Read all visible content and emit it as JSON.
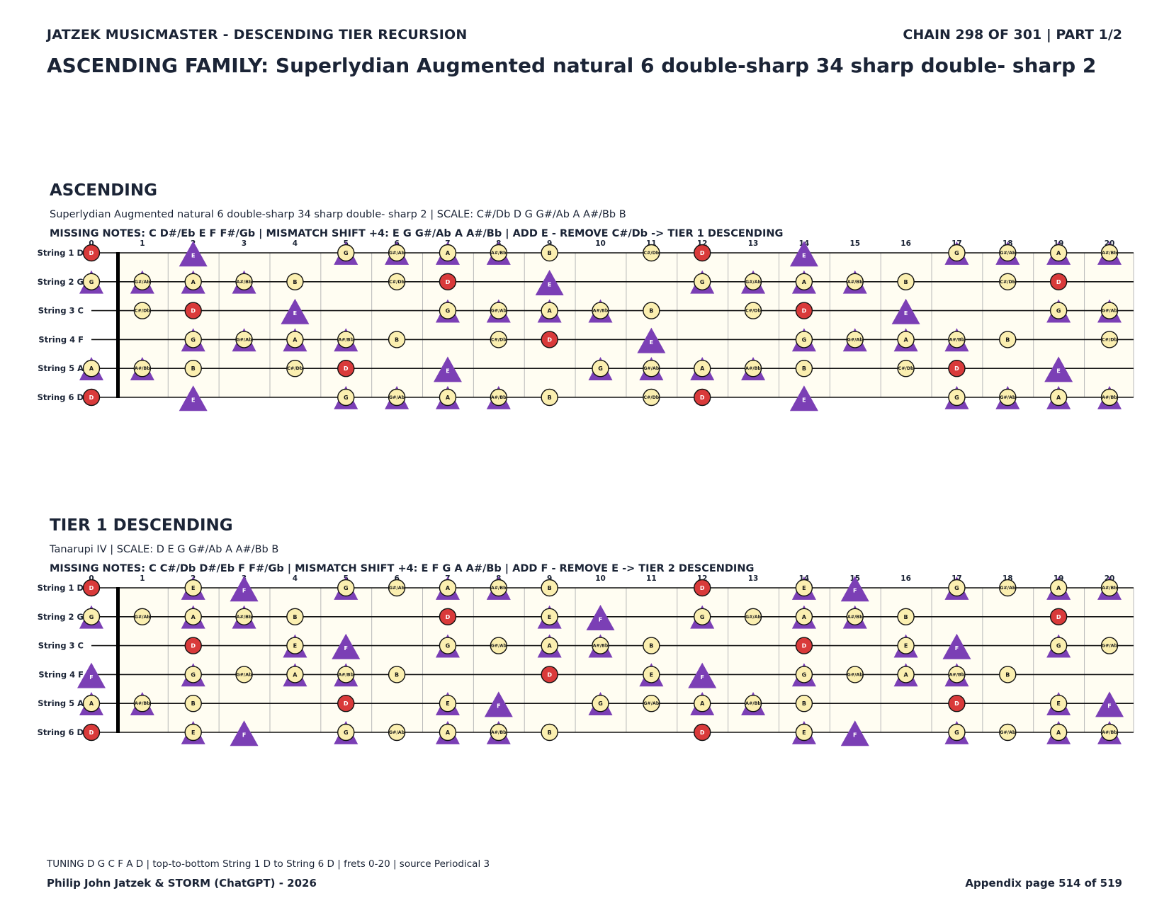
{
  "header": {
    "left": "JATZEK MUSICMASTER - DESCENDING TIER RECURSION",
    "right": "CHAIN 298 OF 301  |  PART 1/2"
  },
  "title": "ASCENDING FAMILY: Superlydian Augmented natural 6 double-sharp 34 sharp double- sharp 2",
  "colors": {
    "root": "#d93a3a",
    "scale": "#fbefb0",
    "marker": "#7b3fb5",
    "board": "#fffdf2",
    "text": "#1b2436"
  },
  "fret_numbers": [
    "0",
    "1",
    "2",
    "3",
    "4",
    "5",
    "6",
    "7",
    "8",
    "9",
    "10",
    "11",
    "12",
    "13",
    "14",
    "15",
    "16",
    "17",
    "18",
    "19",
    "20"
  ],
  "sections": [
    {
      "title": "ASCENDING",
      "subtitle": "Superlydian Augmented natural 6 double-sharp 34 sharp double- sharp 2  |  SCALE: C#/Db D G G#/Ab A A#/Bb B",
      "note": "MISSING NOTES: C D#/Eb E F F#/Gb  |  MISMATCH SHIFT +4: E G G#/Ab A A#/Bb  |  ADD E - REMOVE C#/Db -> TIER 1 DESCENDING",
      "root": "D",
      "scale": [
        "C#/Db",
        "D",
        "G",
        "G#/Ab",
        "A",
        "A#/Bb",
        "B"
      ],
      "markers": [
        "E",
        "G",
        "G#/Ab",
        "A",
        "A#/Bb"
      ],
      "triangle_only": [
        "E"
      ],
      "strings": [
        {
          "label": "String 1 D",
          "open": "D"
        },
        {
          "label": "String 2 G",
          "open": "G"
        },
        {
          "label": "String 3 C",
          "open": "C"
        },
        {
          "label": "String 4 F",
          "open": "F"
        },
        {
          "label": "String 5 A",
          "open": "A"
        },
        {
          "label": "String 6 D",
          "open": "D"
        }
      ]
    },
    {
      "title": "TIER 1 DESCENDING",
      "subtitle": "Tanarupi IV  |  SCALE: D E G G#/Ab A A#/Bb B",
      "note": "MISSING NOTES: C C#/Db D#/Eb F F#/Gb  |  MISMATCH SHIFT +4: E F G A A#/Bb  |  ADD F - REMOVE E -> TIER 2 DESCENDING",
      "root": "D",
      "scale": [
        "D",
        "E",
        "G",
        "G#/Ab",
        "A",
        "A#/Bb",
        "B"
      ],
      "markers": [
        "E",
        "F",
        "G",
        "A",
        "A#/Bb"
      ],
      "triangle_only": [
        "F"
      ],
      "strings": [
        {
          "label": "String 1 D",
          "open": "D"
        },
        {
          "label": "String 2 G",
          "open": "G"
        },
        {
          "label": "String 3 C",
          "open": "C"
        },
        {
          "label": "String 4 F",
          "open": "F"
        },
        {
          "label": "String 5 A",
          "open": "A"
        },
        {
          "label": "String 6 D",
          "open": "D"
        }
      ]
    }
  ],
  "footer": {
    "note": "TUNING D G C F A D | top-to-bottom String 1 D to String 6 D | frets 0-20 | source Periodical 3",
    "left": "Philip John Jatzek & STORM (ChatGPT) - 2026",
    "right": "Appendix page 514 of 519"
  }
}
